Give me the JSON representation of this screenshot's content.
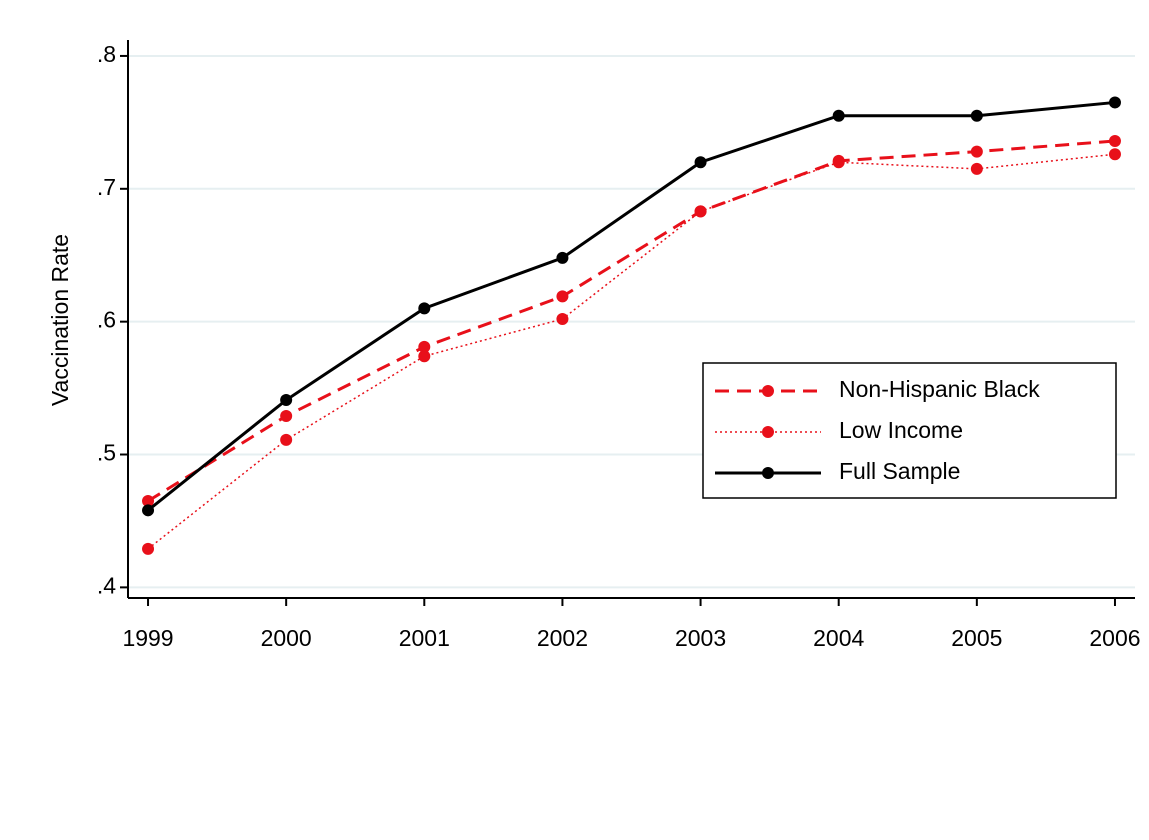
{
  "chart_data": {
    "type": "line",
    "y_label": "Vaccination Rate",
    "x": [
      1999,
      2000,
      2001,
      2002,
      2003,
      2004,
      2005,
      2006
    ],
    "xlim": [
      1998.855,
      2006.145
    ],
    "xticks": [
      1999,
      2000,
      2001,
      2002,
      2003,
      2004,
      2005,
      2006
    ],
    "ylim": [
      0.392,
      0.812
    ],
    "yticks": [
      {
        "value": 0.4,
        "label": ".4"
      },
      {
        "value": 0.5,
        "label": ".5"
      },
      {
        "value": 0.6,
        "label": ".6"
      },
      {
        "value": 0.7,
        "label": ".7"
      },
      {
        "value": 0.8,
        "label": ".8"
      }
    ],
    "grid": true,
    "legend": "right",
    "series": [
      {
        "name": "Non-Hispanic Black",
        "color": "#e8101a",
        "style": "dashed",
        "values": [
          0.465,
          0.529,
          0.581,
          0.619,
          0.683,
          0.721,
          0.728,
          0.736
        ]
      },
      {
        "name": "Low Income",
        "color": "#e8101a",
        "style": "dotted",
        "values": [
          0.429,
          0.511,
          0.574,
          0.602,
          0.683,
          0.72,
          0.715,
          0.726
        ]
      },
      {
        "name": "Full Sample",
        "color": "#000000",
        "style": "solid",
        "values": [
          0.458,
          0.541,
          0.61,
          0.648,
          0.72,
          0.755,
          0.755,
          0.765
        ]
      }
    ]
  }
}
